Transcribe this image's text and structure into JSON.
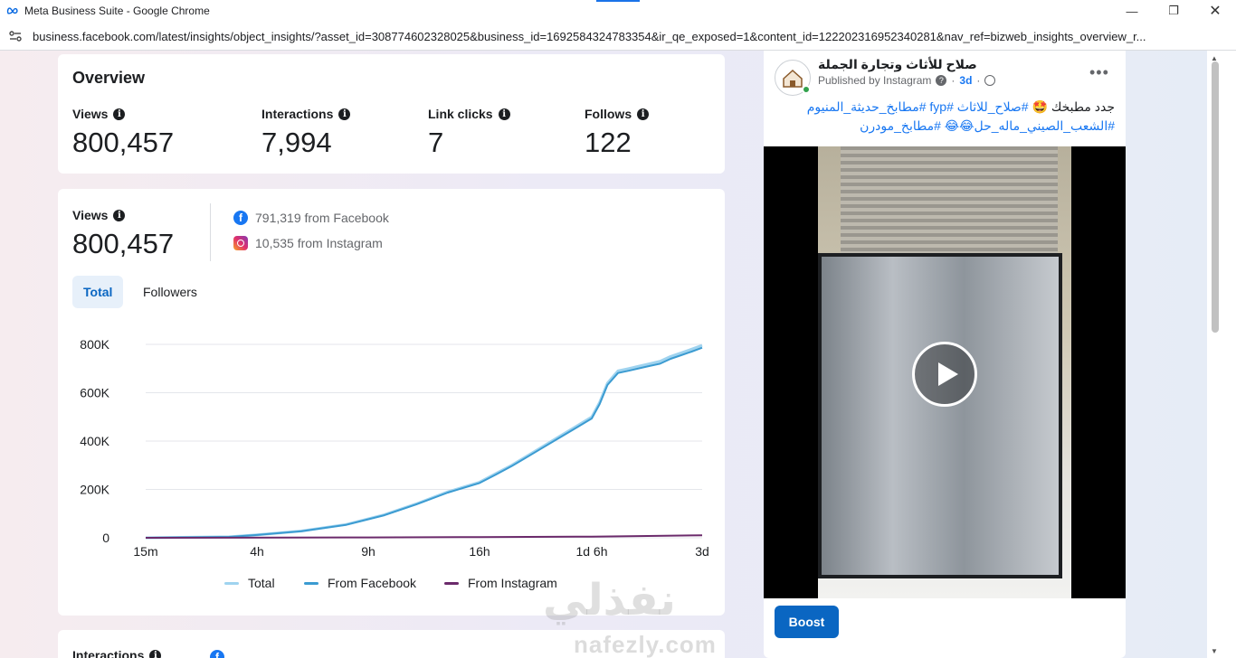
{
  "window": {
    "title": "Meta Business Suite - Google Chrome",
    "url": "business.facebook.com/latest/insights/object_insights/?asset_id=308774602328025&business_id=1692584324783354&ir_qe_exposed=1&content_id=122202316952340281&nav_ref=bizweb_insights_overview_r..."
  },
  "overview": {
    "title": "Overview",
    "metrics": [
      {
        "label": "Views",
        "value": "800,457"
      },
      {
        "label": "Interactions",
        "value": "7,994"
      },
      {
        "label": "Link clicks",
        "value": "7"
      },
      {
        "label": "Follows",
        "value": "122"
      }
    ]
  },
  "views_card": {
    "label": "Views",
    "value": "800,457",
    "facebook": "791,319 from Facebook",
    "instagram": "10,535 from Instagram",
    "tabs": [
      "Total",
      "Followers"
    ],
    "legend": [
      "Total",
      "From Facebook",
      "From Instagram"
    ]
  },
  "chart_data": {
    "type": "line",
    "title": "",
    "xlabel": "",
    "ylabel": "",
    "x_ticks": [
      "15m",
      "4h",
      "9h",
      "16h",
      "1d 6h",
      "3d"
    ],
    "y_ticks": [
      "0",
      "200K",
      "400K",
      "600K",
      "800K"
    ],
    "ylim": [
      0,
      800000
    ],
    "x_ticks_at": [
      0,
      4,
      9,
      16,
      30,
      72
    ],
    "series": [
      {
        "name": "Total",
        "color": "#9fd3ef",
        "x": [
          0,
          3,
          4,
          6,
          8,
          10,
          12,
          14,
          16,
          18,
          20,
          22,
          24,
          26,
          28,
          30,
          33,
          36,
          40,
          44,
          48,
          52,
          56,
          60,
          64,
          68,
          72
        ],
        "y": [
          0,
          4000,
          12000,
          28000,
          55000,
          95000,
          140000,
          190000,
          230000,
          265000,
          300000,
          340000,
          380000,
          420000,
          460000,
          500000,
          560000,
          640000,
          690000,
          700000,
          710000,
          720000,
          730000,
          750000,
          765000,
          780000,
          796000
        ]
      },
      {
        "name": "From Facebook",
        "color": "#3b9bd1",
        "x": [
          0,
          3,
          4,
          6,
          8,
          10,
          12,
          14,
          16,
          18,
          20,
          22,
          24,
          26,
          28,
          30,
          33,
          36,
          40,
          44,
          48,
          52,
          56,
          60,
          64,
          68,
          72
        ],
        "y": [
          0,
          3800,
          11500,
          27000,
          53500,
          93000,
          137500,
          187000,
          226500,
          261000,
          296000,
          335500,
          375000,
          414500,
          454000,
          493500,
          553000,
          632000,
          681500,
          691000,
          701000,
          710500,
          720000,
          740000,
          755000,
          770000,
          786000
        ]
      },
      {
        "name": "From Instagram",
        "color": "#6b2a6b",
        "x": [
          0,
          9,
          16,
          30,
          48,
          72
        ],
        "y": [
          0,
          1500,
          3000,
          5000,
          7000,
          10500
        ]
      }
    ]
  },
  "post": {
    "author": "صلاح للأثاث وتجارة الجملة",
    "meta": "Published by Instagram",
    "age": "3d",
    "text_plain": "جدد مطبخك 🤩",
    "text_tags_1": "#صلاح_للاثاث #fyp #مطابخ_حديثة_المنيوم",
    "text_tags_2": "#الشعب_الصيني_ماله_حل😂😂 #مطابخ_مودرن",
    "boost": "Boost"
  },
  "watermark": {
    "arabic": "نفذلي",
    "latin": "nafezly.com"
  },
  "colors": {
    "accent": "#0a66c2",
    "facebook": "#1877f2"
  }
}
